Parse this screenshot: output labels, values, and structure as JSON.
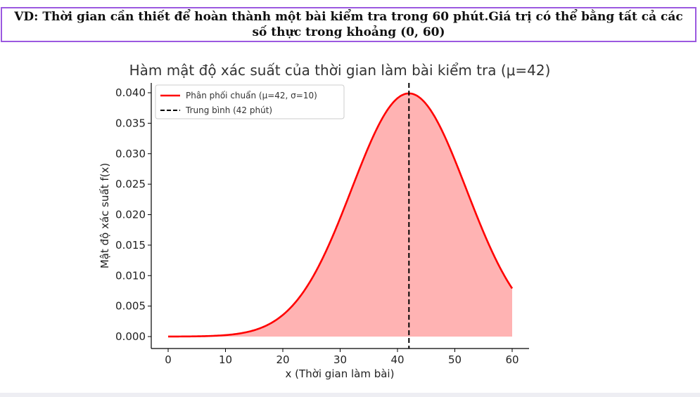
{
  "header": {
    "text": "VD: Thời gian cần thiết để hoàn thành một bài kiểm tra trong 60 phút.Giá trị có thể bằng tất cả các số thực trong khoảng (0, 60)"
  },
  "colors": {
    "border": "#9b59e0",
    "curve": "#ff0000",
    "fill": "#ffb3b3",
    "mean_line": "#000000"
  },
  "chart_data": {
    "type": "area",
    "title": "Hàm mật độ xác suất của thời gian làm bài kiểm tra (μ=42)",
    "xlabel": "x (Thời gian làm bài)",
    "ylabel": "Mật độ xác suất f(x)",
    "xlim": [
      0,
      60
    ],
    "ylim": [
      0,
      0.04
    ],
    "xticks": [
      "0",
      "10",
      "20",
      "30",
      "40",
      "50",
      "60"
    ],
    "yticks": [
      "0.000",
      "0.005",
      "0.010",
      "0.015",
      "0.020",
      "0.025",
      "0.030",
      "0.035",
      "0.040"
    ],
    "distribution": {
      "mu": 42,
      "sigma": 10
    },
    "mean": 42,
    "legend_position": "top-left",
    "grid": false,
    "series": [
      {
        "name": "Phân phối chuẩn (μ=42, σ=10)",
        "style": "solid red line with filled area"
      },
      {
        "name": "Trung bình (42 phút)",
        "style": "dashed black vertical line"
      }
    ]
  }
}
